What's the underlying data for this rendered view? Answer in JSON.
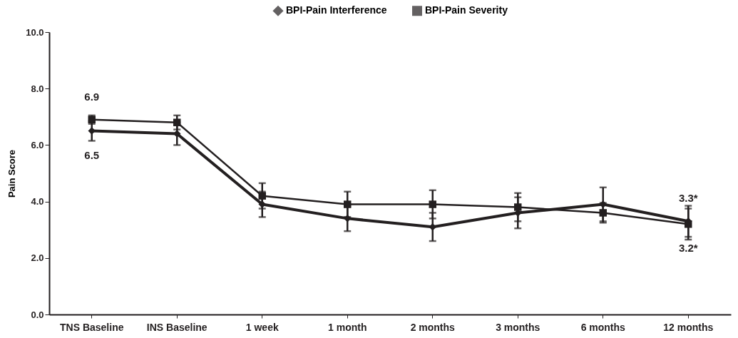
{
  "chart_data": {
    "type": "line",
    "ylabel": "Pain Score",
    "categories": [
      "TNS Baseline",
      "INS Baseline",
      "1 week",
      "1 month",
      "2 months",
      "3 months",
      "6 months",
      "12 months"
    ],
    "series": [
      {
        "name": "BPI-Pain Interference",
        "color": "#231f20",
        "marker": "diamond",
        "values": [
          6.5,
          6.4,
          3.9,
          3.4,
          3.1,
          3.6,
          3.9,
          3.3
        ],
        "errors": [
          0.35,
          0.4,
          0.45,
          0.45,
          0.5,
          0.55,
          0.6,
          0.55
        ],
        "value_labels": [
          "6.5",
          null,
          null,
          null,
          null,
          null,
          null,
          "3.3*"
        ]
      },
      {
        "name": "BPI-Pain Severity",
        "color": "#231f20",
        "marker": "square",
        "values": [
          6.9,
          6.8,
          4.2,
          3.9,
          3.9,
          3.8,
          3.6,
          3.2
        ],
        "errors": [
          0.15,
          0.25,
          0.45,
          0.45,
          0.5,
          0.5,
          0.35,
          0.55
        ],
        "value_labels": [
          "6.9",
          null,
          null,
          null,
          null,
          null,
          null,
          "3.2*"
        ]
      }
    ],
    "ylim": [
      0,
      10
    ],
    "yticks": [
      {
        "value": 0,
        "label": "0.0"
      },
      {
        "value": 2,
        "label": "2.0"
      },
      {
        "value": 4,
        "label": "4.0"
      },
      {
        "value": 6,
        "label": "6.0"
      },
      {
        "value": 8,
        "label": "8.0"
      },
      {
        "value": 10,
        "label": "10.0"
      }
    ],
    "legend": "top",
    "grid": false
  }
}
